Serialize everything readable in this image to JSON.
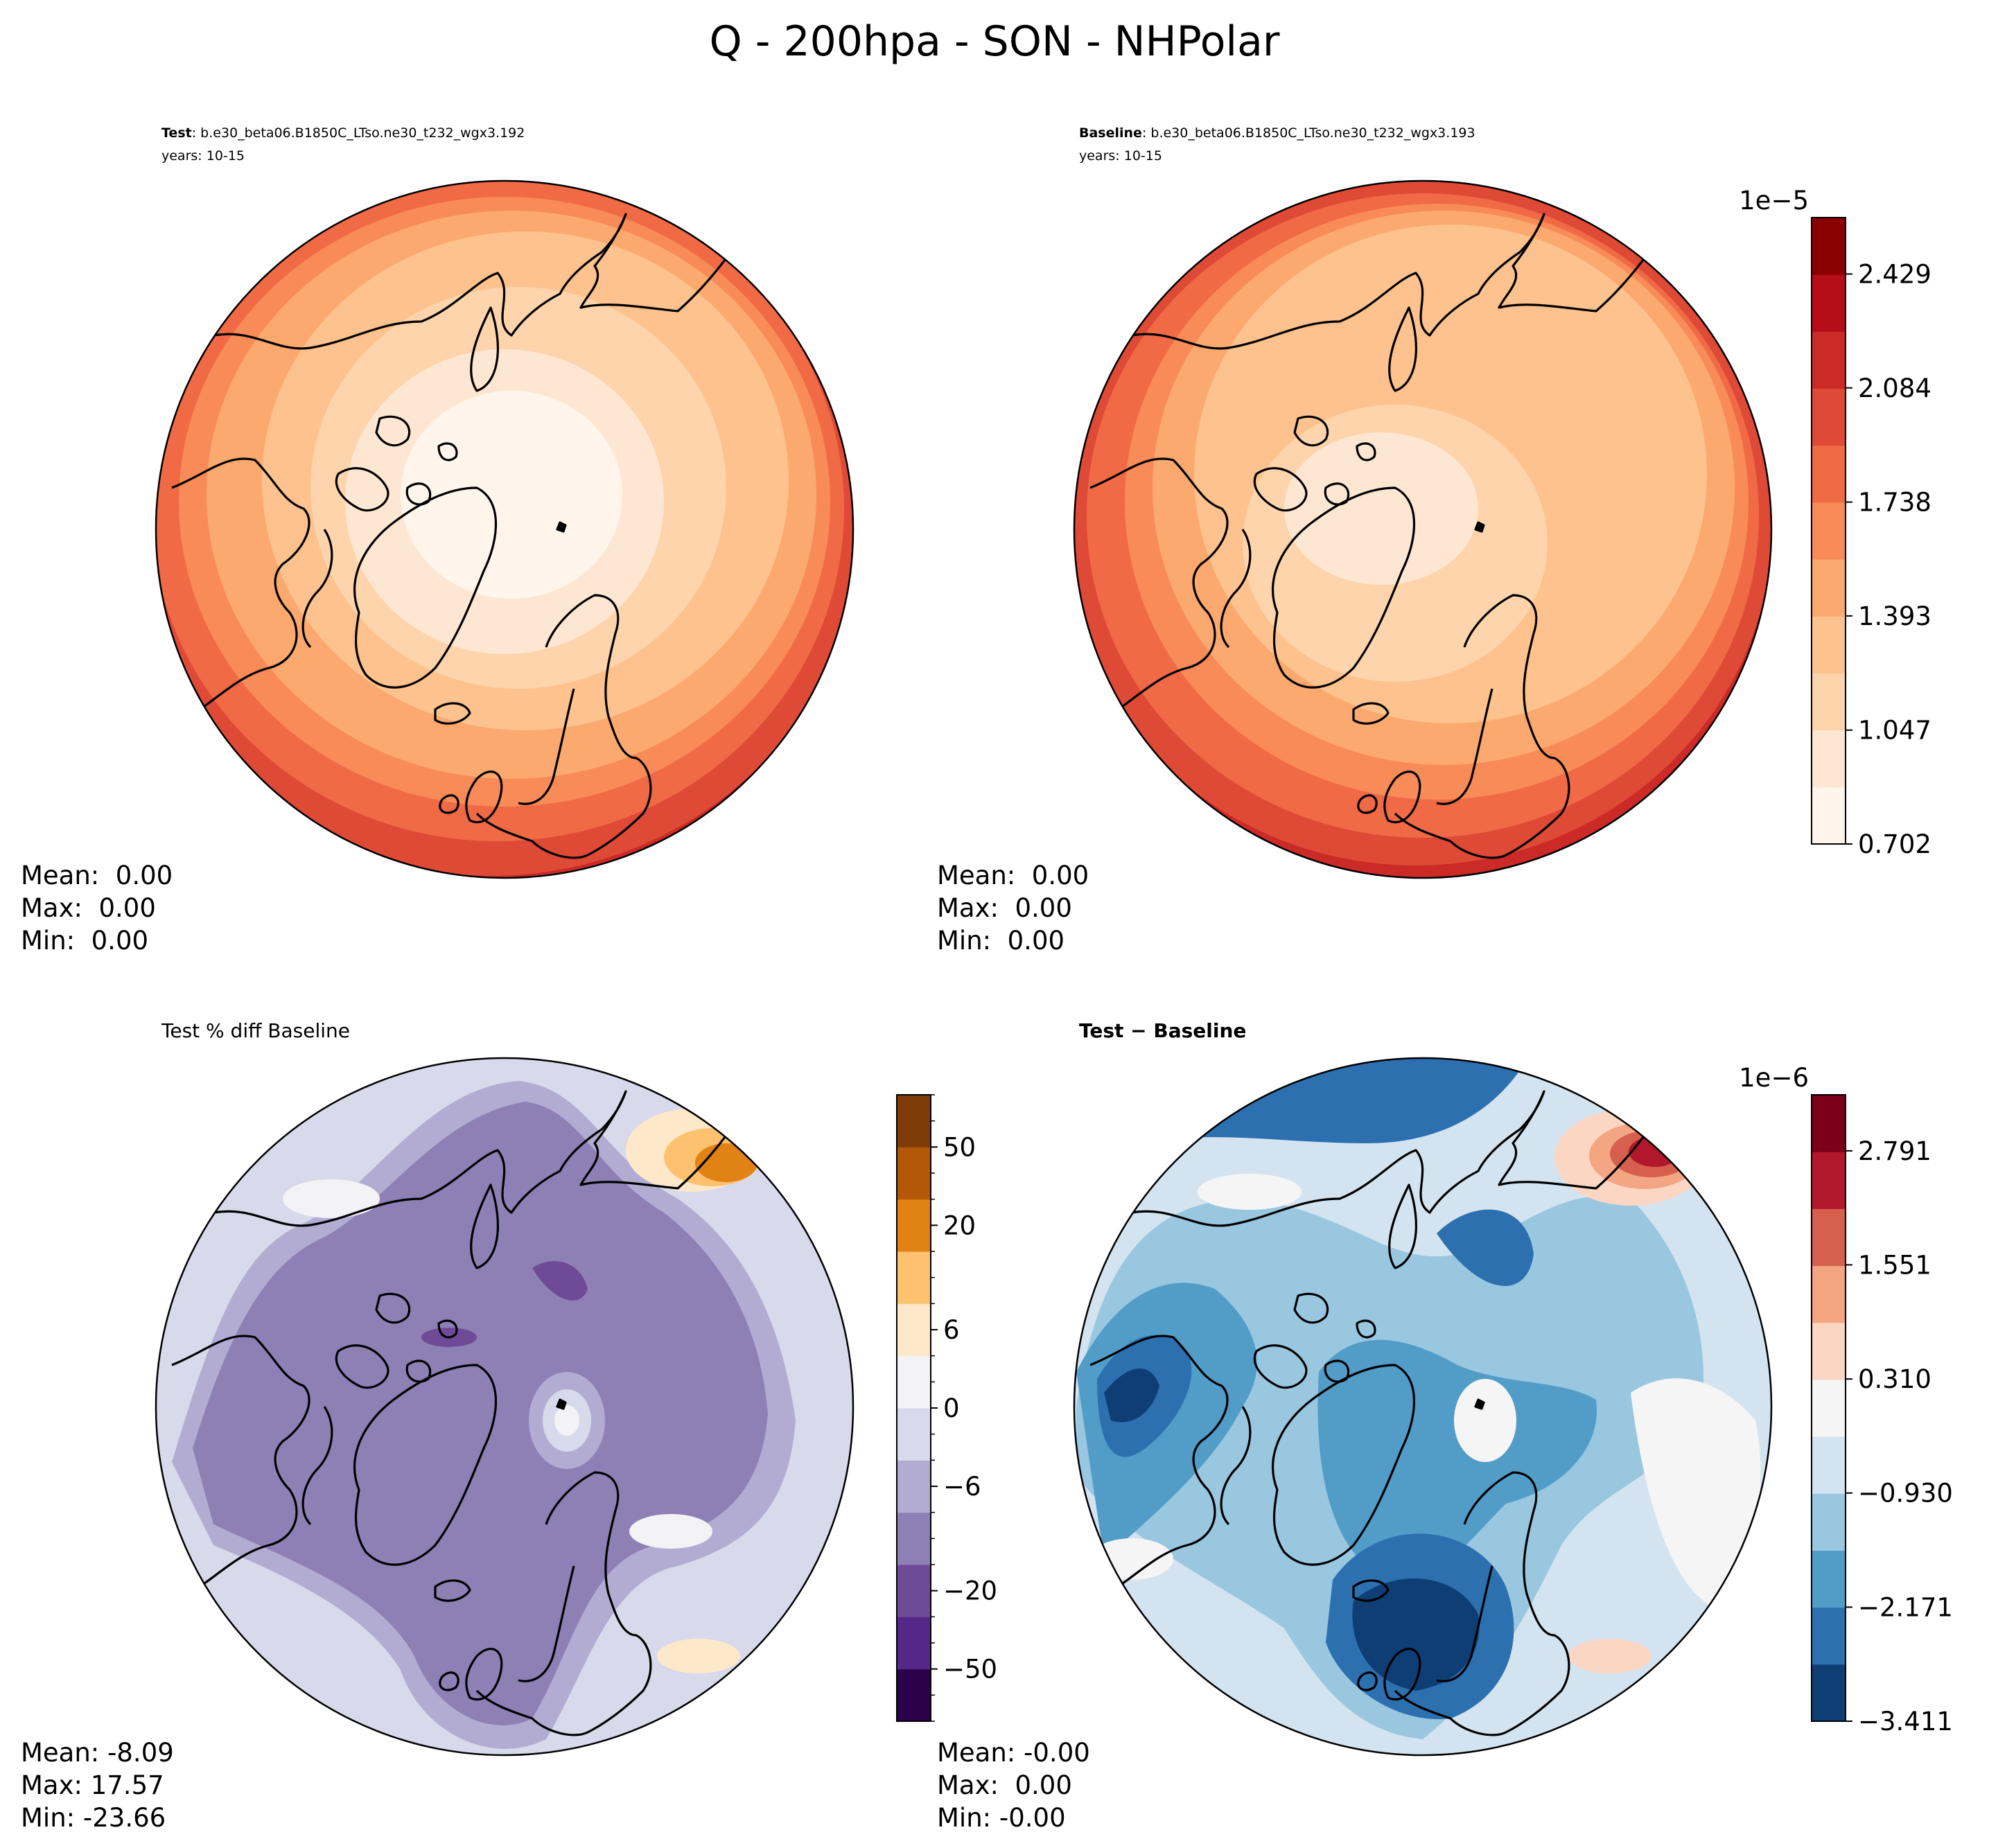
{
  "title": "Q - 200hpa - SON - NHPolar",
  "colors": {
    "land_outline": "#000000",
    "reds": [
      "#fff5eb",
      "#fee7d2",
      "#fdd4ab",
      "#fdc28d",
      "#fca96f",
      "#f88b58",
      "#f06a46",
      "#df4a36",
      "#cb2a26",
      "#b50e1a",
      "#8b0000"
    ],
    "purples": [
      "#2d004b",
      "#542788",
      "#6f4a96",
      "#8e80b5",
      "#b3acd2",
      "#d8daeb",
      "#f3f2f5",
      "#fde8c9",
      "#fdc170",
      "#e08214",
      "#b35806",
      "#7f3b08"
    ],
    "blues_reds": [
      "#0e3e74",
      "#2d70b0",
      "#529dc8",
      "#9ac7e0",
      "#d3e4f0",
      "#f5f5f5",
      "#fbd7c3",
      "#f4a582",
      "#d6604d",
      "#b2182b",
      "#7c0019"
    ]
  },
  "chart_data": [
    {
      "type": "contour",
      "projection": "north-polar-stereographic",
      "panel": "test",
      "title_bold": "Test",
      "title_rest": ": b.e30_beta06.B1850C_LTso.ne30_t232_wgx3.192",
      "subtitle": "years: 10-15",
      "stats": [
        "Mean:  0.00",
        "Max:  0.00",
        "Min:  0.00"
      ],
      "field_levels": [
        10,
        9,
        8,
        7,
        6,
        5,
        4,
        3,
        2,
        1,
        0
      ]
    },
    {
      "type": "contour",
      "projection": "north-polar-stereographic",
      "panel": "baseline",
      "title_bold": "Baseline",
      "title_rest": ": b.e30_beta06.B1850C_LTso.ne30_t232_wgx3.193",
      "subtitle": "years: 10-15",
      "stats": [
        "Mean:  0.00",
        "Max:  0.00",
        "Min:  0.00"
      ],
      "colorbar": {
        "exponent_label": "1e−5",
        "range": [
          0.702,
          2.6
        ],
        "ticks": [
          0.702,
          1.047,
          1.393,
          1.738,
          2.084,
          2.429
        ],
        "tick_labels": [
          "0.702",
          "1.047",
          "1.393",
          "1.738",
          "2.084",
          "2.429"
        ]
      }
    },
    {
      "type": "contour",
      "projection": "north-polar-stereographic",
      "panel": "percent-diff",
      "title": "Test % diff Baseline",
      "stats": [
        "Mean: -8.09",
        "Max: 17.57",
        "Min: -23.66"
      ],
      "colorbar": {
        "levels": [
          -100,
          -70,
          -50,
          -40,
          -30,
          -20,
          -15,
          -10,
          -8,
          -6,
          -4,
          -2,
          0,
          2,
          4,
          6,
          8,
          10,
          15,
          20,
          30,
          40,
          50,
          70,
          100
        ],
        "tick_values": [
          -50,
          -20,
          -6,
          0,
          6,
          20,
          50
        ],
        "tick_labels": [
          "−50",
          "−20",
          "−6",
          "0",
          "6",
          "20",
          "50"
        ]
      }
    },
    {
      "type": "contour",
      "projection": "north-polar-stereographic",
      "panel": "difference",
      "title": "Test − Baseline",
      "stats": [
        "Mean: -0.00",
        "Max:  0.00",
        "Min: -0.00"
      ],
      "colorbar": {
        "exponent_label": "1e−6",
        "range": [
          -3.411,
          3.4
        ],
        "ticks": [
          -3.411,
          -2.171,
          -0.93,
          0.31,
          1.551,
          2.791
        ],
        "tick_labels": [
          "−3.411",
          "−2.171",
          "−0.930",
          "0.310",
          "1.551",
          "2.791"
        ]
      }
    }
  ]
}
